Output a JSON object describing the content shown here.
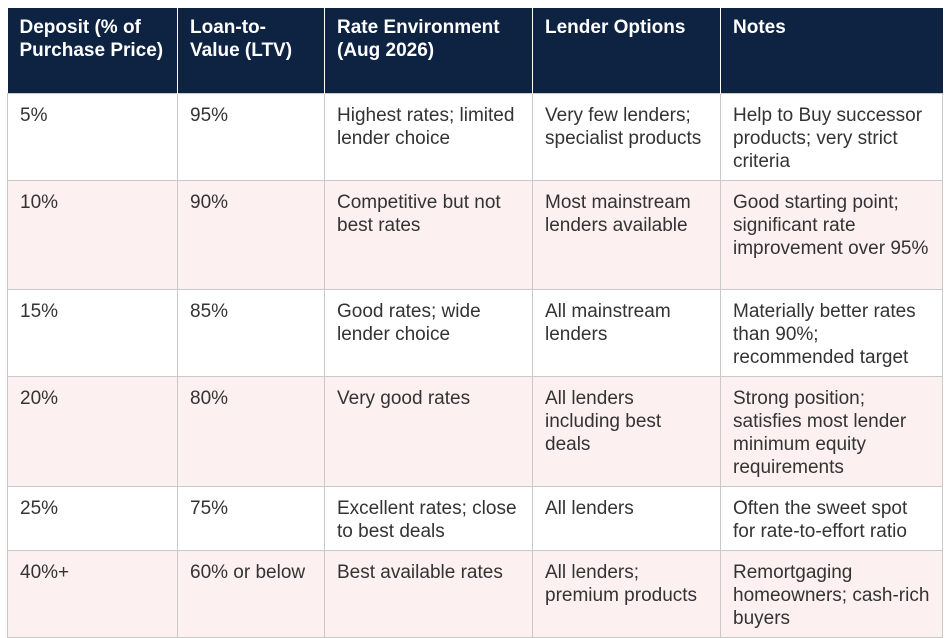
{
  "table": {
    "headers": [
      "Deposit (% of Purchase Price)",
      "Loan-to-Value (LTV)",
      "Rate Environment (Aug 2026)",
      "Lender Options",
      "Notes"
    ],
    "rows": [
      [
        "5%",
        "95%",
        "Highest rates; limited lender choice",
        "Very few lenders; specialist products",
        "Help to Buy successor products; very strict criteria"
      ],
      [
        "10%",
        "90%",
        "Competitive but not best rates",
        "Most mainstream lenders available",
        "Good starting point; significant rate improvement over 95%"
      ],
      [
        "15%",
        "85%",
        "Good rates; wide lender choice",
        "All mainstream lenders",
        "Materially better rates than 90%; recommended target"
      ],
      [
        "20%",
        "80%",
        "Very good rates",
        "All lenders including best deals",
        "Strong position; satisfies most lender minimum equity requirements"
      ],
      [
        "25%",
        "75%",
        "Excellent rates; close to best deals",
        "All lenders",
        "Often the sweet spot for rate-to-effort ratio"
      ],
      [
        "40%+",
        "60% or below",
        "Best available rates",
        "All lenders; premium products",
        "Remortgaging homeowners; cash-rich buyers"
      ]
    ]
  },
  "colors": {
    "header_bg": "#0e2341",
    "header_text": "#ffffff",
    "stripe_bg": "#fdf0f0",
    "border": "#c9c9c9",
    "body_text": "#333333"
  }
}
